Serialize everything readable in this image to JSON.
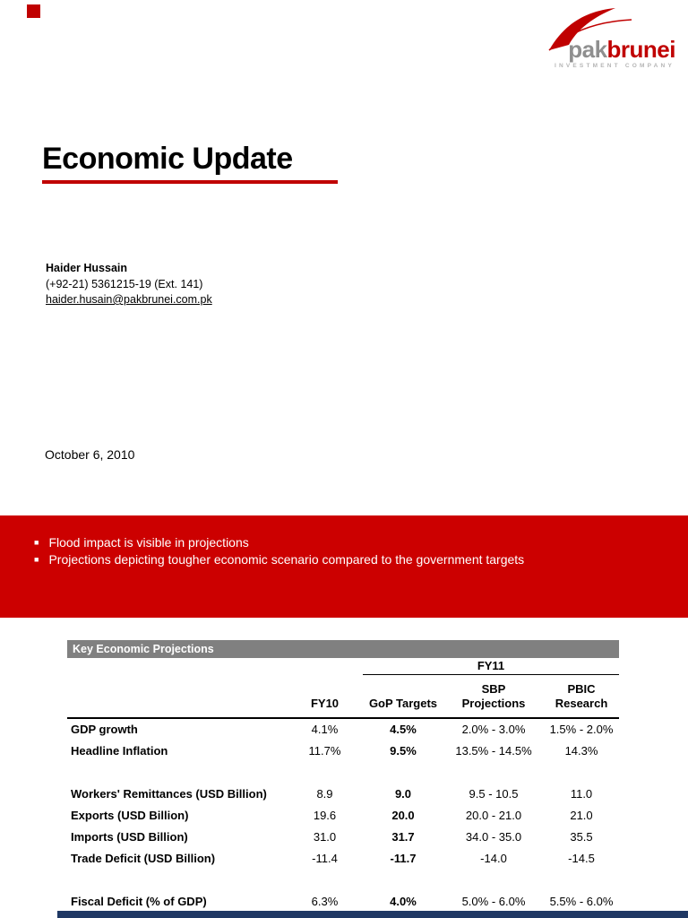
{
  "logo": {
    "pak": "pak",
    "brunei": "brunei",
    "tagline": "INVESTMENT COMPANY"
  },
  "title": "Economic Update",
  "contact": {
    "name": "Haider Hussain",
    "phone": "(+92-21) 5361215-19 (Ext. 141)",
    "email": "haider.husain@pakbrunei.com.pk"
  },
  "date_line": "October 6, 2010",
  "banner": {
    "bullets": [
      "Flood impact is visible in projections",
      "Projections depicting tougher economic scenario compared to the government targets"
    ]
  },
  "table": {
    "title": "Key Economic Projections",
    "group_header": "FY11",
    "columns": {
      "fy10": "FY10",
      "gop": "GoP Targets",
      "sbp": "SBP\nProjections",
      "pbic": "PBIC\nResearch"
    },
    "rows": [
      {
        "label": "GDP growth",
        "fy10": "4.1%",
        "gop": "4.5%",
        "sbp": "2.0% - 3.0%",
        "pbic": "1.5% - 2.0%"
      },
      {
        "label": "Headline Inflation",
        "fy10": "11.7%",
        "gop": "9.5%",
        "sbp": "13.5% - 14.5%",
        "pbic": "14.3%"
      },
      {
        "spacer": true
      },
      {
        "label": "Workers' Remittances (USD Billion)",
        "fy10": "8.9",
        "gop": "9.0",
        "sbp": "9.5 - 10.5",
        "pbic": "11.0"
      },
      {
        "label": "Exports (USD Billion)",
        "fy10": "19.6",
        "gop": "20.0",
        "sbp": "20.0 - 21.0",
        "pbic": "21.0"
      },
      {
        "label": "Imports (USD Billion)",
        "fy10": "31.0",
        "gop": "31.7",
        "sbp": "34.0 - 35.0",
        "pbic": "35.5"
      },
      {
        "label": "Trade Deficit (USD Billion)",
        "fy10": "-11.4",
        "gop": "-11.7",
        "sbp": "-14.0",
        "pbic": "-14.5"
      },
      {
        "spacer": true
      },
      {
        "label": "Fiscal Deficit (% of GDP)",
        "fy10": "6.3%",
        "gop": "4.0%",
        "sbp": "5.0% - 6.0%",
        "pbic": "5.5% - 6.0%"
      }
    ]
  },
  "colors": {
    "accent_red": "#C00000",
    "banner_red": "#CC0000",
    "header_gray": "#808080",
    "footer_navy": "#1F3864",
    "logo_gray": "#8F8F8F"
  }
}
